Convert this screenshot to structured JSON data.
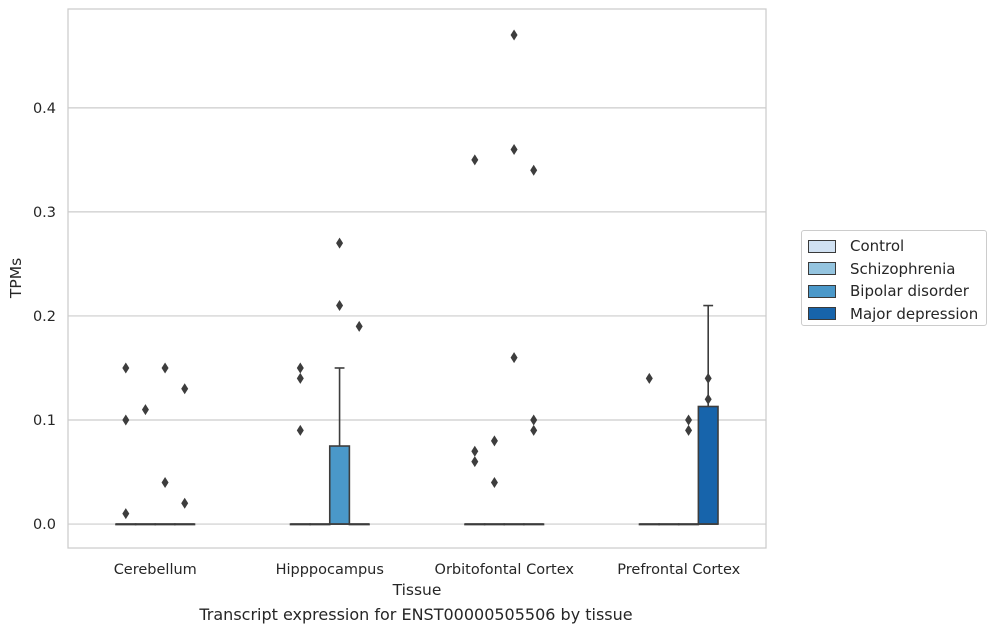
{
  "chart_data": {
    "type": "box",
    "caption": "Transcript expression for ENST00000505506 by tissue",
    "xlabel": "Tissue",
    "ylabel": "TPMs",
    "ylim": [
      -0.023,
      0.495
    ],
    "yticks": [
      0.0,
      0.1,
      0.2,
      0.3,
      0.4
    ],
    "ytick_labels": [
      "0.0",
      "0.1",
      "0.2",
      "0.3",
      "0.4"
    ],
    "grid": true,
    "legend_position": "right",
    "categories": [
      "Cerebellum",
      "Hipppocampus",
      "Orbitofontal Cortex",
      "Prefrontal Cortex"
    ],
    "series": [
      {
        "name": "Control",
        "color": "#d0e1f2",
        "boxes": [
          {
            "q1": 0,
            "median": 0,
            "q3": 0,
            "whisker_low": 0,
            "whisker_high": 0,
            "outliers": [
              0.15,
              0.1,
              0.01
            ]
          },
          {
            "q1": 0,
            "median": 0,
            "q3": 0,
            "whisker_low": 0,
            "whisker_high": 0,
            "outliers": [
              0.15,
              0.14,
              0.09
            ]
          },
          {
            "q1": 0,
            "median": 0,
            "q3": 0,
            "whisker_low": 0,
            "whisker_high": 0,
            "outliers": [
              0.35,
              0.07,
              0.06
            ]
          },
          {
            "q1": 0,
            "median": 0,
            "q3": 0,
            "whisker_low": 0,
            "whisker_high": 0,
            "outliers": [
              0.14
            ]
          }
        ]
      },
      {
        "name": "Schizophrenia",
        "color": "#94c4df",
        "boxes": [
          {
            "q1": 0,
            "median": 0,
            "q3": 0,
            "whisker_low": 0,
            "whisker_high": 0,
            "outliers": [
              0.11
            ]
          },
          {
            "q1": 0,
            "median": 0,
            "q3": 0,
            "whisker_low": 0,
            "whisker_high": 0,
            "outliers": []
          },
          {
            "q1": 0,
            "median": 0,
            "q3": 0,
            "whisker_low": 0,
            "whisker_high": 0,
            "outliers": [
              0.08,
              0.04
            ]
          },
          {
            "q1": 0,
            "median": 0,
            "q3": 0,
            "whisker_low": 0,
            "whisker_high": 0,
            "outliers": []
          }
        ]
      },
      {
        "name": "Bipolar disorder",
        "color": "#4a98c9",
        "boxes": [
          {
            "q1": 0,
            "median": 0,
            "q3": 0,
            "whisker_low": 0,
            "whisker_high": 0,
            "outliers": [
              0.15,
              0.04
            ]
          },
          {
            "q1": 0,
            "median": 0,
            "q3": 0.075,
            "whisker_low": 0,
            "whisker_high": 0.15,
            "outliers": [
              0.27,
              0.21
            ]
          },
          {
            "q1": 0,
            "median": 0,
            "q3": 0,
            "whisker_low": 0,
            "whisker_high": 0,
            "outliers": [
              0.47,
              0.36,
              0.16
            ]
          },
          {
            "q1": 0,
            "median": 0,
            "q3": 0,
            "whisker_low": 0,
            "whisker_high": 0,
            "outliers": [
              0.1,
              0.09
            ]
          }
        ]
      },
      {
        "name": "Major depression",
        "color": "#1764ab",
        "boxes": [
          {
            "q1": 0,
            "median": 0,
            "q3": 0,
            "whisker_low": 0,
            "whisker_high": 0,
            "outliers": [
              0.13,
              0.02
            ]
          },
          {
            "q1": 0,
            "median": 0,
            "q3": 0,
            "whisker_low": 0,
            "whisker_high": 0,
            "outliers": [
              0.19
            ]
          },
          {
            "q1": 0,
            "median": 0,
            "q3": 0,
            "whisker_low": 0,
            "whisker_high": 0,
            "outliers": [
              0.34,
              0.1,
              0.09
            ]
          },
          {
            "q1": 0,
            "median": 0,
            "q3": 0.113,
            "whisker_low": 0,
            "whisker_high": 0.21,
            "outliers": [
              0.14,
              0.12
            ]
          }
        ]
      }
    ]
  }
}
